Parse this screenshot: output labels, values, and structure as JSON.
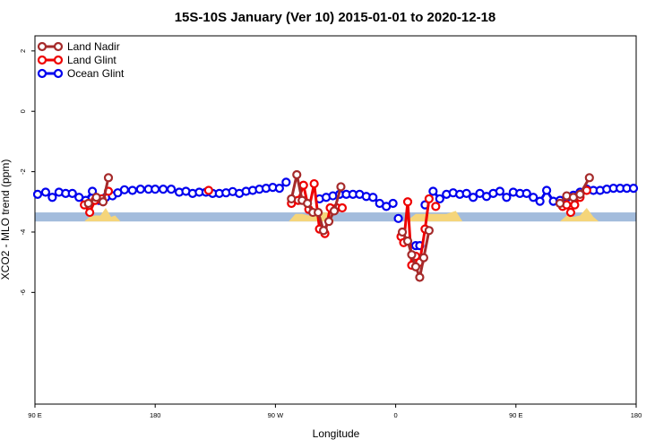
{
  "chart_data": {
    "type": "line",
    "title": "15S-10S January (Ver 10)   2015-01-01 to 2020-12-18",
    "xlabel": "Longitude",
    "ylabel": "XCO2 - MLO trend (ppm)",
    "xlim": [
      90,
      540
    ],
    "ylim": [
      -9.7,
      2.5
    ],
    "x_ticks": [
      {
        "value": 90,
        "label": "90 E"
      },
      {
        "value": 180,
        "label": "180"
      },
      {
        "value": 270,
        "label": "90 W"
      },
      {
        "value": 360,
        "label": "0"
      },
      {
        "value": 450,
        "label": "90 E"
      },
      {
        "value": 540,
        "label": "180"
      }
    ],
    "y_ticks": [
      {
        "value": 2,
        "label": "2"
      },
      {
        "value": 0,
        "label": "0"
      },
      {
        "value": -2,
        "label": "-2"
      },
      {
        "value": -4,
        "label": "-4"
      },
      {
        "value": -6,
        "label": "-6"
      }
    ],
    "band": {
      "y_low": -3.65,
      "y_high": -3.35,
      "color": "#a3bcdc"
    },
    "land_fill_color": "#f5d57a",
    "land_fill_baseline": -3.65,
    "land_fill": [
      {
        "x": [
          127,
          131,
          135,
          139,
          143,
          147,
          150,
          154
        ],
        "y": [
          -3.65,
          -3.5,
          -3.45,
          -3.45,
          -3.2,
          -3.5,
          -3.45,
          -3.65
        ]
      },
      {
        "x": [
          280,
          285,
          290,
          295,
          300,
          305,
          310,
          314
        ],
        "y": [
          -3.65,
          -3.4,
          -3.4,
          -3.45,
          -3.35,
          -3.35,
          -3.35,
          -3.65
        ]
      },
      {
        "x": [
          368,
          375,
          382,
          390,
          398,
          405,
          410
        ],
        "y": [
          -3.65,
          -3.4,
          -3.4,
          -3.4,
          -3.4,
          -3.3,
          -3.65
        ]
      },
      {
        "x": [
          483,
          488,
          493,
          498,
          503,
          508,
          512
        ],
        "y": [
          -3.65,
          -3.45,
          -3.5,
          -3.45,
          -3.2,
          -3.5,
          -3.65
        ]
      }
    ],
    "legend": [
      {
        "label": "Land Nadir",
        "color": "#a52a2a"
      },
      {
        "label": "Land Glint",
        "color": "#ee0000"
      },
      {
        "label": "Ocean Glint",
        "color": "#0000ee"
      }
    ],
    "series": [
      {
        "name": "Ocean Glint",
        "color": "#0000ee",
        "segments": [
          {
            "x": [
              92,
              98,
              103,
              108,
              113,
              118,
              123,
              128,
              133,
              138,
              143,
              148,
              152,
              157,
              163,
              169,
              175,
              180,
              186,
              192,
              198,
              203,
              208,
              213,
              218,
              223,
              228,
              233,
              238,
              243,
              248,
              253,
              258,
              263,
              268,
              273,
              278
            ],
            "y": [
              -2.75,
              -2.68,
              -2.85,
              -2.68,
              -2.72,
              -2.72,
              -2.85,
              -2.95,
              -2.65,
              -2.95,
              -2.85,
              -2.8,
              -2.7,
              -2.6,
              -2.62,
              -2.58,
              -2.58,
              -2.58,
              -2.58,
              -2.58,
              -2.68,
              -2.65,
              -2.72,
              -2.68,
              -2.68,
              -2.72,
              -2.72,
              -2.7,
              -2.66,
              -2.72,
              -2.65,
              -2.62,
              -2.58,
              -2.55,
              -2.52,
              -2.55,
              -2.35
            ]
          },
          {
            "x": [
              303,
              308,
              313,
              318,
              323,
              328,
              333,
              338,
              343,
              348,
              353,
              358
            ],
            "y": [
              -2.9,
              -2.85,
              -2.8,
              -2.75,
              -2.75,
              -2.75,
              -2.75,
              -2.82,
              -2.85,
              -3.05,
              -3.15,
              -3.05
            ]
          },
          {
            "x": [
              362
            ],
            "y": [
              -3.55
            ]
          },
          {
            "x": [
              375,
              378
            ],
            "y": [
              -4.45,
              -4.45
            ]
          },
          {
            "x": [
              382,
              388,
              393,
              398,
              403,
              408,
              413,
              418,
              423,
              428,
              433,
              438,
              443,
              448,
              453,
              458,
              463,
              468,
              473,
              478,
              483,
              488,
              493,
              498,
              503,
              508,
              513,
              518,
              523,
              528,
              533,
              538
            ],
            "y": [
              -3.1,
              -2.65,
              -2.9,
              -2.75,
              -2.7,
              -2.75,
              -2.72,
              -2.85,
              -2.72,
              -2.82,
              -2.72,
              -2.65,
              -2.85,
              -2.68,
              -2.72,
              -2.72,
              -2.85,
              -2.98,
              -2.62,
              -2.98,
              -2.95,
              -2.85,
              -2.78,
              -2.68,
              -2.58,
              -2.62,
              -2.62,
              -2.58,
              -2.55,
              -2.55,
              -2.55,
              -2.55
            ]
          }
        ]
      },
      {
        "name": "Land Glint",
        "color": "#ee0000",
        "segments": [
          {
            "x": [
              127,
              131,
              135,
              140,
              145
            ],
            "y": [
              -3.1,
              -3.35,
              -2.95,
              -2.9,
              -2.65
            ]
          },
          {
            "x": [
              220
            ],
            "y": [
              -2.62
            ]
          },
          {
            "x": [
              282,
              287,
              291,
              295,
              299,
              303,
              307,
              311,
              316,
              320
            ],
            "y": [
              -3.05,
              -2.95,
              -2.45,
              -3.25,
              -2.4,
              -3.9,
              -4.05,
              -3.2,
              -3.2,
              -3.2
            ]
          },
          {
            "x": [
              364,
              366,
              369,
              372,
              375,
              378,
              382,
              385
            ],
            "y": [
              -4.15,
              -4.35,
              -3.0,
              -5.1,
              -4.8,
              -5.0,
              -3.9,
              -2.9
            ]
          },
          {
            "x": [
              390
            ],
            "y": [
              -3.15
            ]
          },
          {
            "x": [
              485,
              488,
              491,
              494,
              498,
              503
            ],
            "y": [
              -3.15,
              -3.1,
              -3.35,
              -3.1,
              -2.85,
              -2.62
            ]
          }
        ]
      },
      {
        "name": "Land Nadir",
        "color": "#a52a2a",
        "segments": [
          {
            "x": [
              130,
              136,
              141,
              145
            ],
            "y": [
              -3.05,
              -2.85,
              -3.0,
              -2.2
            ]
          },
          {
            "x": [
              282,
              286,
              290,
              294,
              298,
              302,
              306,
              310,
              314,
              319
            ],
            "y": [
              -2.9,
              -2.1,
              -2.95,
              -3.05,
              -3.35,
              -3.35,
              -3.95,
              -3.65,
              -3.3,
              -2.5
            ]
          },
          {
            "x": [
              365,
              369,
              372,
              375,
              378,
              381,
              385
            ],
            "y": [
              -4.0,
              -4.3,
              -4.75,
              -5.15,
              -5.5,
              -4.85,
              -3.95
            ]
          },
          {
            "x": [
              483,
              488,
              493,
              498,
              505
            ],
            "y": [
              -3.05,
              -2.8,
              -2.85,
              -2.75,
              -2.2
            ]
          }
        ]
      }
    ]
  }
}
